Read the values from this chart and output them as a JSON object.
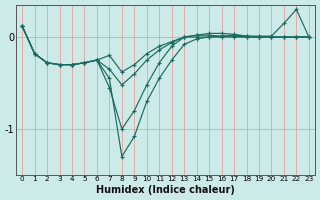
{
  "xlabel": "Humidex (Indice chaleur)",
  "bg_color": "#cceae8",
  "grid_color": "#e8a0a0",
  "line_color": "#1a6b5e",
  "x": [
    0,
    1,
    2,
    3,
    4,
    5,
    6,
    7,
    8,
    9,
    10,
    11,
    12,
    13,
    14,
    15,
    16,
    17,
    18,
    19,
    20,
    21,
    22,
    23
  ],
  "series": [
    [
      0.12,
      -0.18,
      -0.28,
      -0.3,
      -0.3,
      -0.28,
      -0.25,
      -0.2,
      -0.38,
      -0.3,
      -0.18,
      -0.1,
      -0.05,
      0.0,
      0.0,
      0.0,
      0.0,
      0.0,
      0.0,
      0.0,
      0.0,
      0.0,
      0.0,
      0.0
    ],
    [
      0.12,
      -0.18,
      -0.28,
      -0.3,
      -0.3,
      -0.28,
      -0.25,
      -0.35,
      -0.52,
      -0.4,
      -0.25,
      -0.14,
      -0.06,
      0.0,
      0.02,
      0.02,
      0.01,
      0.01,
      0.0,
      0.0,
      0.0,
      0.0,
      0.0,
      0.0
    ],
    [
      0.12,
      -0.18,
      -0.28,
      -0.3,
      -0.3,
      -0.28,
      -0.25,
      -0.55,
      -1.0,
      -0.8,
      -0.52,
      -0.28,
      -0.1,
      0.0,
      0.02,
      0.04,
      0.04,
      0.03,
      0.01,
      0.01,
      0.01,
      0.15,
      0.3,
      0.0
    ],
    [
      0.12,
      -0.18,
      -0.28,
      -0.3,
      -0.3,
      -0.28,
      -0.25,
      -0.45,
      -1.3,
      -1.08,
      -0.7,
      -0.45,
      -0.25,
      -0.08,
      -0.02,
      0.0,
      0.01,
      0.02,
      0.01,
      0.0,
      0.0,
      0.0,
      0.0,
      0.0
    ]
  ],
  "ylim": [
    -1.5,
    0.35
  ],
  "yticks": [
    -1,
    0
  ],
  "xlim": [
    -0.5,
    23.5
  ],
  "xticks": [
    0,
    1,
    2,
    3,
    4,
    5,
    6,
    7,
    8,
    9,
    10,
    11,
    12,
    13,
    14,
    15,
    16,
    17,
    18,
    19,
    20,
    21,
    22,
    23
  ]
}
